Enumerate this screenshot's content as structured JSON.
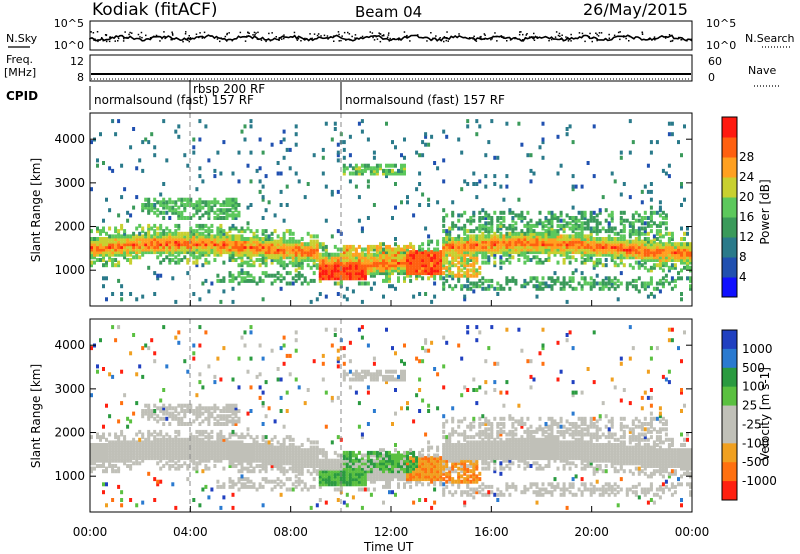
{
  "header": {
    "title": "Kodiak (fitACF)",
    "beam": "Beam 04",
    "date": "26/May/2015"
  },
  "labels": {
    "nsky": "N.Sky",
    "nsearch": "N.Search",
    "freq": "Freq.",
    "freq_unit": "[MHz]",
    "nave": "Nave",
    "cpid": "CPID"
  },
  "cpid": {
    "segments": [
      {
        "label": "normalsound (fast) 157 RF",
        "start_h": 0,
        "end_h": 4
      },
      {
        "label": "rbsp 200 RF",
        "start_h": 4,
        "end_h": 10
      },
      {
        "label": "normalsound (fast) 157 RF",
        "start_h": 10,
        "end_h": 24
      }
    ],
    "overlap_label": "normalsound (fast) 157 RF"
  },
  "noise_axis": {
    "left_ticks": [
      "10^5",
      "10^0"
    ],
    "right_ticks": [
      "10^5",
      "10^0"
    ]
  },
  "freq_axis": {
    "left_ticks": [
      "12",
      "8"
    ],
    "right_ticks": [
      "60",
      "0"
    ]
  },
  "chart_data": [
    {
      "type": "heatmap",
      "title": "Power",
      "ylabel": "Slant Range [km]",
      "xlabel": "Time UT",
      "xlim": [
        0,
        24
      ],
      "ylim": [
        180,
        4600
      ],
      "yticks": [
        1000,
        2000,
        3000,
        4000
      ],
      "xticks": [
        "00:00",
        "04:00",
        "08:00",
        "12:00",
        "16:00",
        "20:00",
        "00:00"
      ],
      "colorbar": {
        "label": "Power [dB]",
        "ticks": [
          4,
          8,
          12,
          16,
          20,
          24,
          28
        ],
        "colors": [
          "#1010ff",
          "#2050b0",
          "#2a7a8a",
          "#3a9a5a",
          "#5cc85c",
          "#c8d030",
          "#ffa020",
          "#ff6010",
          "#ff1a10"
        ]
      },
      "echo_bands": [
        {
          "name": "main F-region band",
          "t": [
            0,
            24
          ],
          "range_km": [
            1400,
            1750
          ]
        },
        {
          "name": "strong patch",
          "t": [
            9,
            11
          ],
          "range_km": [
            800,
            1200
          ]
        },
        {
          "name": "strong patch",
          "t": [
            12.5,
            14
          ],
          "range_km": [
            950,
            1500
          ]
        },
        {
          "name": "upper band",
          "t": [
            10,
            12.5
          ],
          "range_km": [
            3200,
            3500
          ]
        }
      ]
    },
    {
      "type": "heatmap",
      "title": "Velocity",
      "ylabel": "Slant Range [km]",
      "xlabel": "Time UT",
      "xlim": [
        0,
        24
      ],
      "ylim": [
        180,
        4600
      ],
      "yticks": [
        1000,
        2000,
        3000,
        4000
      ],
      "xticks": [
        "00:00",
        "04:00",
        "08:00",
        "12:00",
        "16:00",
        "20:00",
        "00:00"
      ],
      "colorbar": {
        "label": "Velocity [m s-1]",
        "ticks": [
          "1000",
          "500",
          "100",
          "25",
          "-25",
          "-100",
          "-500",
          "-1000"
        ],
        "colors": [
          "#2040c0",
          "#2a7ad0",
          "#2a9a40",
          "#5ac040",
          "#c0c0b8",
          "#c0c0b8",
          "#f0a020",
          "#ff7010",
          "#ff2010"
        ]
      },
      "echo_bands": [
        {
          "name": "ground scatter (grey)",
          "t": [
            0,
            24
          ],
          "range_km": [
            1400,
            1750
          ]
        },
        {
          "name": "positive velocity (green)",
          "t": [
            10,
            13.5
          ],
          "range_km": [
            800,
            1500
          ]
        },
        {
          "name": "negative velocity (orange)",
          "t": [
            13.5,
            15.5
          ],
          "range_km": [
            900,
            1500
          ]
        }
      ]
    }
  ]
}
